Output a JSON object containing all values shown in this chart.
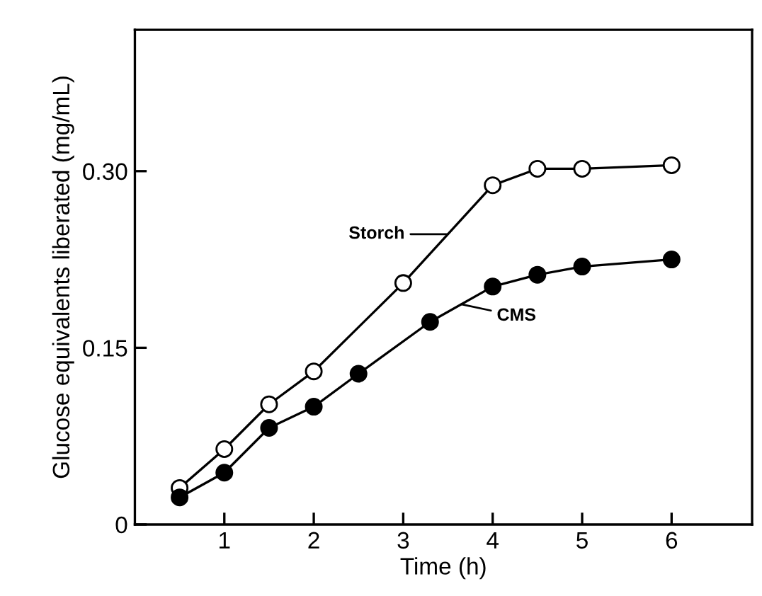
{
  "chart_data": {
    "type": "line",
    "xlabel": "Time (h)",
    "ylabel": "Glucose equivalents liberated (mg/mL)",
    "xlim": [
      0,
      6.9
    ],
    "xticks": [
      1,
      2,
      3,
      4,
      5,
      6
    ],
    "ylim": [
      0,
      0.42
    ],
    "yticks": [
      {
        "value": 0,
        "label": "0"
      },
      {
        "value": 0.15,
        "label": "0.15"
      },
      {
        "value": 0.3,
        "label": "0.30"
      }
    ],
    "grid": false,
    "legend": false,
    "series": [
      {
        "color": "#000000",
        "marker": "circle",
        "x": [
          0.5,
          1,
          1.5,
          2,
          3,
          4,
          4.5,
          5,
          6
        ],
        "values": [
          0.031,
          0.064,
          0.102,
          0.13,
          0.205,
          0.288,
          0.302,
          0.302,
          0.305
        ]
      },
      {
        "color": "#000000",
        "marker": "circle",
        "x": [
          0.5,
          1,
          1.5,
          2,
          2.5,
          3.3,
          4,
          4.5,
          5,
          6
        ],
        "values": [
          0.023,
          0.044,
          0.082,
          0.1,
          0.128,
          0.172,
          0.202,
          0.212,
          0.219,
          0.225
        ]
      }
    ],
    "annotations": [
      {
        "text": "Storch",
        "x": 3.5,
        "y": 0.2465
      },
      {
        "text": "CMS",
        "x": 3.65,
        "y": 0.187
      }
    ]
  }
}
